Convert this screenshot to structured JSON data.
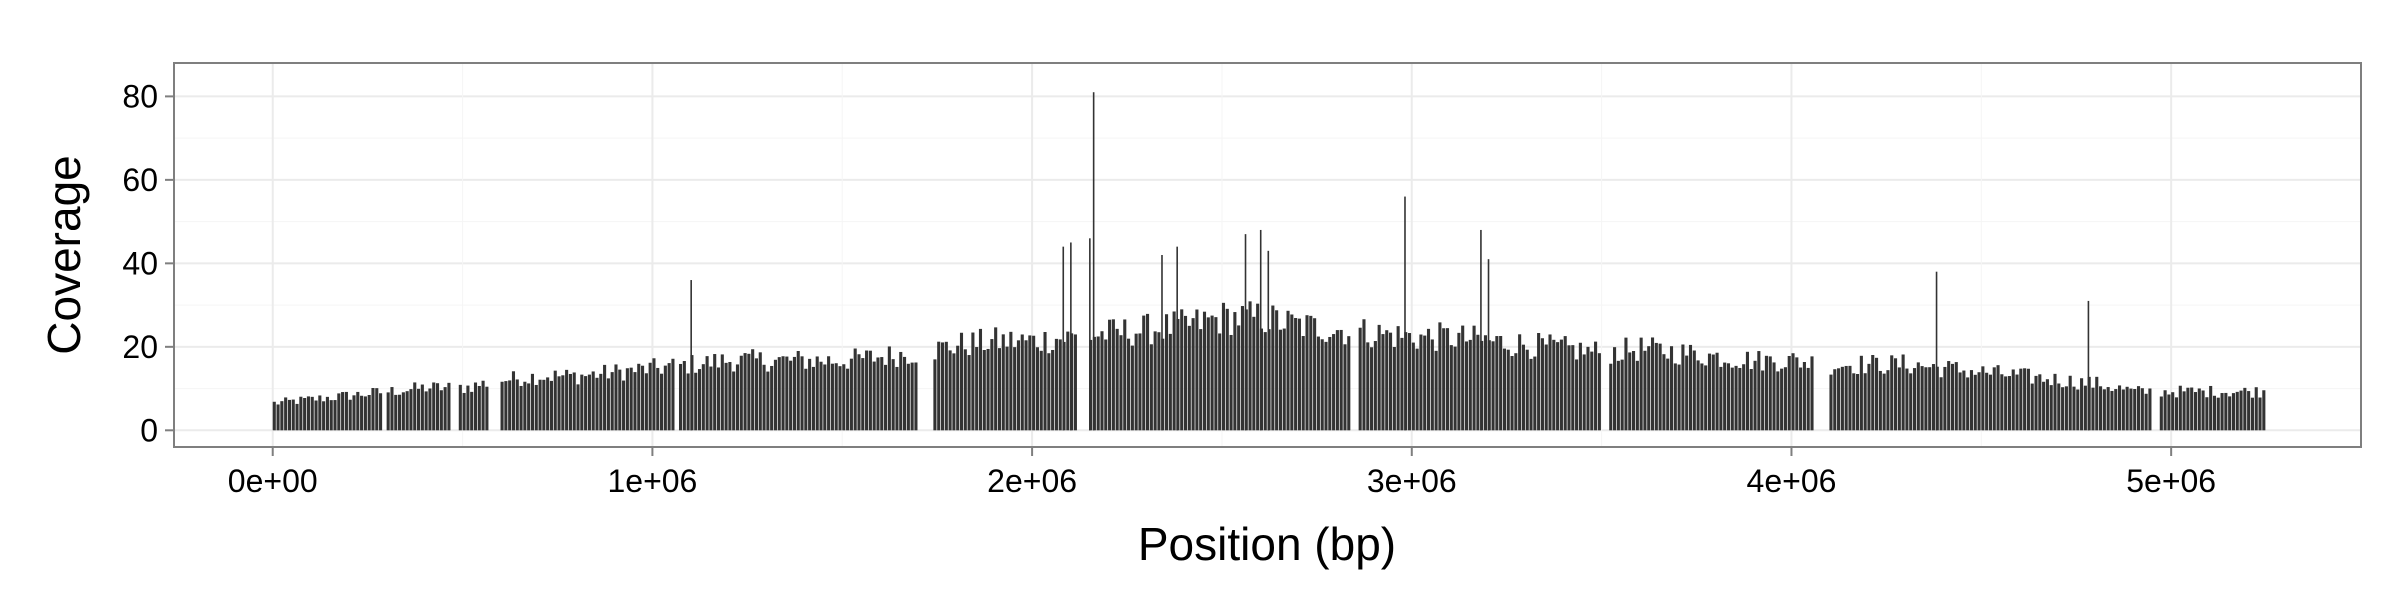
{
  "chart_data": {
    "type": "bar",
    "xlabel": "Position (bp)",
    "ylabel": "Coverage",
    "xlim": [
      -260000,
      5500000
    ],
    "ylim": [
      -4,
      88
    ],
    "x_ticks": [
      {
        "value": 0,
        "label": "0e+00"
      },
      {
        "value": 1000000,
        "label": "1e+06"
      },
      {
        "value": 2000000,
        "label": "2e+06"
      },
      {
        "value": 3000000,
        "label": "3e+06"
      },
      {
        "value": 4000000,
        "label": "4e+06"
      },
      {
        "value": 5000000,
        "label": "5e+06"
      }
    ],
    "y_ticks": [
      {
        "value": 0,
        "label": "0"
      },
      {
        "value": 20,
        "label": "20"
      },
      {
        "value": 40,
        "label": "40"
      },
      {
        "value": 60,
        "label": "60"
      },
      {
        "value": 80,
        "label": "80"
      }
    ],
    "grid": true,
    "bar_color": "#333333",
    "panel_background": "#ffffff",
    "grid_color": "#ebebeb",
    "bin_width": 10000,
    "profile": [
      [
        0,
        7
      ],
      [
        100000,
        8
      ],
      [
        200000,
        9
      ],
      [
        300000,
        10
      ],
      [
        400000,
        11
      ],
      [
        500000,
        11
      ],
      [
        600000,
        13
      ],
      [
        700000,
        14
      ],
      [
        800000,
        14
      ],
      [
        900000,
        15
      ],
      [
        1000000,
        16
      ],
      [
        1100000,
        17
      ],
      [
        1200000,
        18
      ],
      [
        1300000,
        18
      ],
      [
        1400000,
        18
      ],
      [
        1500000,
        18
      ],
      [
        1600000,
        19
      ],
      [
        1700000,
        20
      ],
      [
        1800000,
        22
      ],
      [
        1900000,
        23
      ],
      [
        2000000,
        23
      ],
      [
        2100000,
        24
      ],
      [
        2200000,
        25
      ],
      [
        2300000,
        26
      ],
      [
        2400000,
        27
      ],
      [
        2500000,
        29
      ],
      [
        2600000,
        29
      ],
      [
        2700000,
        27
      ],
      [
        2800000,
        26
      ],
      [
        2900000,
        25
      ],
      [
        3000000,
        24
      ],
      [
        3100000,
        24
      ],
      [
        3200000,
        23
      ],
      [
        3300000,
        22
      ],
      [
        3400000,
        21
      ],
      [
        3500000,
        20
      ],
      [
        3600000,
        21
      ],
      [
        3700000,
        20
      ],
      [
        3800000,
        19
      ],
      [
        3900000,
        18
      ],
      [
        4000000,
        18
      ],
      [
        4100000,
        17
      ],
      [
        4200000,
        17
      ],
      [
        4300000,
        17
      ],
      [
        4400000,
        16
      ],
      [
        4500000,
        15
      ],
      [
        4600000,
        14
      ],
      [
        4700000,
        13
      ],
      [
        4800000,
        12
      ],
      [
        4900000,
        10
      ],
      [
        5000000,
        10
      ],
      [
        5100000,
        10
      ],
      [
        5240000,
        10
      ]
    ],
    "gaps": [
      [
        290000,
        300000
      ],
      [
        470000,
        490000
      ],
      [
        570000,
        600000
      ],
      [
        1060000,
        1070000
      ],
      [
        1700000,
        1740000
      ],
      [
        2120000,
        2150000
      ],
      [
        2840000,
        2860000
      ],
      [
        3500000,
        3520000
      ],
      [
        4060000,
        4100000
      ],
      [
        4950000,
        4970000
      ]
    ],
    "peaks": [
      {
        "x": 1100000,
        "y": 36
      },
      {
        "x": 2080000,
        "y": 44
      },
      {
        "x": 2100000,
        "y": 45
      },
      {
        "x": 2150000,
        "y": 46
      },
      {
        "x": 2160000,
        "y": 81
      },
      {
        "x": 2340000,
        "y": 42
      },
      {
        "x": 2380000,
        "y": 44
      },
      {
        "x": 2560000,
        "y": 47
      },
      {
        "x": 2600000,
        "y": 48
      },
      {
        "x": 2620000,
        "y": 43
      },
      {
        "x": 2980000,
        "y": 56
      },
      {
        "x": 3180000,
        "y": 48
      },
      {
        "x": 3200000,
        "y": 41
      },
      {
        "x": 4380000,
        "y": 38
      },
      {
        "x": 4780000,
        "y": 31
      }
    ]
  }
}
